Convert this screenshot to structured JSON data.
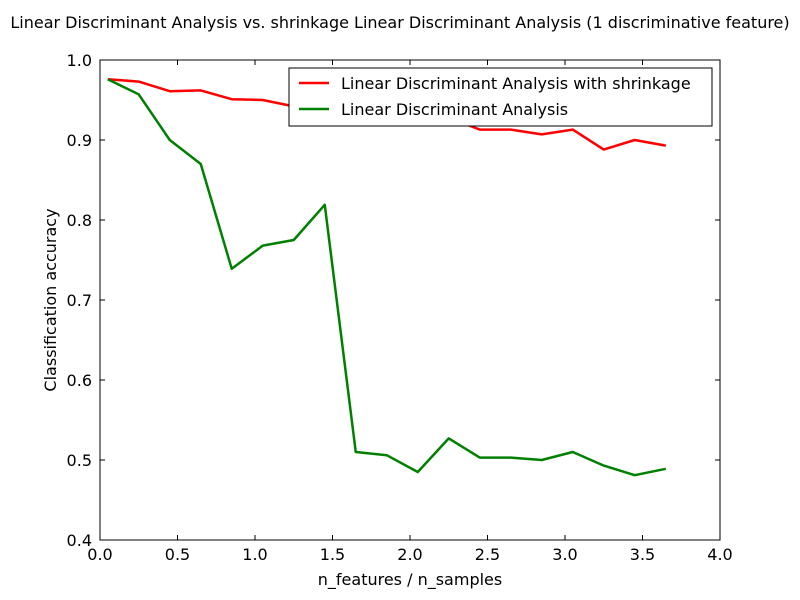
{
  "chart_data": {
    "type": "line",
    "title": "Linear Discriminant Analysis vs. shrinkage Linear Discriminant Analysis (1 discriminative feature)",
    "xlabel": "n_features / n_samples",
    "ylabel": "Classification accuracy",
    "xlim": [
      0.0,
      4.0
    ],
    "ylim": [
      0.4,
      1.0
    ],
    "xticks": [
      "0.0",
      "0.5",
      "1.0",
      "1.5",
      "2.0",
      "2.5",
      "3.0",
      "3.5",
      "4.0"
    ],
    "yticks": [
      "0.4",
      "0.5",
      "0.6",
      "0.7",
      "0.8",
      "0.9",
      "1.0"
    ],
    "grid": false,
    "legend_position": "top-right",
    "x": [
      0.05,
      0.25,
      0.45,
      0.65,
      0.85,
      1.05,
      1.25,
      1.45,
      1.65,
      1.85,
      2.05,
      2.25,
      2.45,
      2.65,
      2.85,
      3.05,
      3.25,
      3.45,
      3.65
    ],
    "series": [
      {
        "name": "Linear Discriminant Analysis with shrinkage",
        "color": "#ff0000",
        "values": [
          0.976,
          0.973,
          0.961,
          0.962,
          0.951,
          0.95,
          0.942,
          0.938,
          0.935,
          0.933,
          0.93,
          0.928,
          0.913,
          0.913,
          0.907,
          0.913,
          0.888,
          0.9,
          0.893
        ]
      },
      {
        "name": "Linear Discriminant Analysis",
        "color": "#008000",
        "values": [
          0.976,
          0.957,
          0.9,
          0.87,
          0.739,
          0.768,
          0.775,
          0.819,
          0.51,
          0.506,
          0.485,
          0.527,
          0.503,
          0.503,
          0.5,
          0.51,
          0.493,
          0.481,
          0.489
        ]
      }
    ]
  }
}
